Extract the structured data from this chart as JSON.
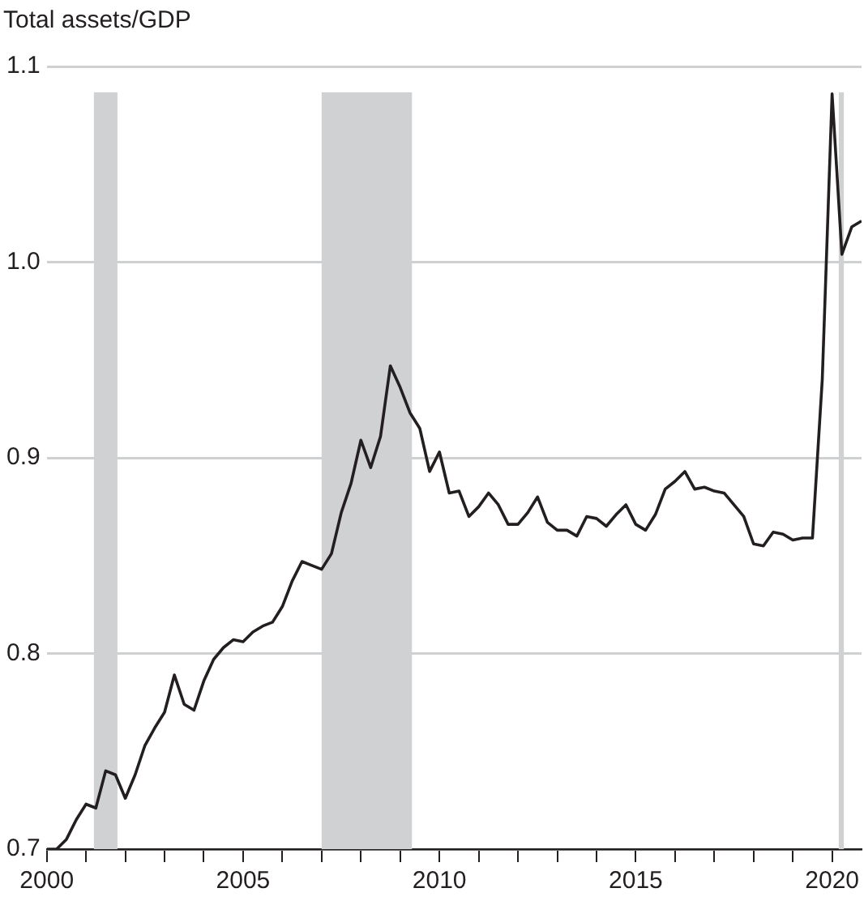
{
  "chart_data": {
    "type": "line",
    "ylabel": "Total assets/GDP",
    "x": [
      2000,
      2000.25,
      2000.5,
      2000.75,
      2001,
      2001.25,
      2001.5,
      2001.75,
      2002,
      2002.25,
      2002.5,
      2002.75,
      2003,
      2003.25,
      2003.5,
      2003.75,
      2004,
      2004.25,
      2004.5,
      2004.75,
      2005,
      2005.25,
      2005.5,
      2005.75,
      2006,
      2006.25,
      2006.5,
      2006.75,
      2007,
      2007.25,
      2007.5,
      2007.75,
      2008,
      2008.25,
      2008.5,
      2008.75,
      2009,
      2009.25,
      2009.5,
      2009.75,
      2010,
      2010.25,
      2010.5,
      2010.75,
      2011,
      2011.25,
      2011.5,
      2011.75,
      2012,
      2012.25,
      2012.5,
      2012.75,
      2013,
      2013.25,
      2013.5,
      2013.75,
      2014,
      2014.25,
      2014.5,
      2014.75,
      2015,
      2015.25,
      2015.5,
      2015.75,
      2016,
      2016.25,
      2016.5,
      2016.75,
      2017,
      2017.25,
      2017.5,
      2017.75,
      2018,
      2018.25,
      2018.5,
      2018.75,
      2019,
      2019.25,
      2019.5,
      2019.75,
      2020,
      2020.25,
      2020.5,
      2020.75
    ],
    "series": [
      {
        "color": "#231f20",
        "values": [
          0.7,
          0.7,
          0.705,
          0.715,
          0.723,
          0.721,
          0.74,
          0.738,
          0.726,
          0.738,
          0.753,
          0.762,
          0.77,
          0.789,
          0.774,
          0.771,
          0.786,
          0.797,
          0.803,
          0.807,
          0.806,
          0.811,
          0.814,
          0.816,
          0.824,
          0.837,
          0.847,
          0.845,
          0.843,
          0.851,
          0.872,
          0.887,
          0.909,
          0.895,
          0.911,
          0.947,
          0.936,
          0.923,
          0.915,
          0.893,
          0.903,
          0.882,
          0.883,
          0.87,
          0.875,
          0.882,
          0.876,
          0.866,
          0.866,
          0.872,
          0.88,
          0.867,
          0.863,
          0.863,
          0.86,
          0.87,
          0.869,
          0.865,
          0.871,
          0.876,
          0.866,
          0.863,
          0.871,
          0.884,
          0.888,
          0.893,
          0.884,
          0.885,
          0.883,
          0.882,
          0.876,
          0.87,
          0.856,
          0.855,
          0.862,
          0.861,
          0.858,
          0.859,
          0.859,
          0.94,
          1.086,
          1.004,
          1.018,
          1.021
        ]
      }
    ],
    "xlim": [
      2000,
      2020.75
    ],
    "xticks": [
      2000,
      {
        "value": 2001,
        "label": null
      },
      {
        "value": 2002,
        "label": null
      },
      {
        "value": 2003,
        "label": null
      },
      {
        "value": 2004,
        "label": null
      },
      2005,
      {
        "value": 2006,
        "label": null
      },
      {
        "value": 2007,
        "label": null
      },
      {
        "value": 2008,
        "label": null
      },
      {
        "value": 2009,
        "label": null
      },
      2010,
      {
        "value": 2011,
        "label": null
      },
      {
        "value": 2012,
        "label": null
      },
      {
        "value": 2013,
        "label": null
      },
      {
        "value": 2014,
        "label": null
      },
      2015,
      {
        "value": 2016,
        "label": null
      },
      {
        "value": 2017,
        "label": null
      },
      {
        "value": 2018,
        "label": null
      },
      {
        "value": 2019,
        "label": null
      },
      2020
    ],
    "ylim": [
      0.7,
      1.1
    ],
    "yticks": [
      {
        "value": 0.7,
        "label": "0.7"
      },
      {
        "value": 0.8,
        "label": "0.8"
      },
      {
        "value": 0.9,
        "label": "0.9"
      },
      {
        "value": 1.0,
        "label": "1.0"
      },
      {
        "value": 1.1,
        "label": "1.1"
      }
    ],
    "bands": [
      {
        "axis": "x",
        "from": 2001.2,
        "to": 2001.8,
        "color": "#d0d1d3"
      },
      {
        "axis": "x",
        "from": 2007.0,
        "to": 2009.3,
        "color": "#d0d1d3"
      },
      {
        "axis": "x",
        "from": 2020.17,
        "to": 2020.3,
        "color": "#d0d1d3"
      }
    ],
    "grid": "y",
    "legend": false,
    "marker": "none",
    "line_style": "solid"
  }
}
